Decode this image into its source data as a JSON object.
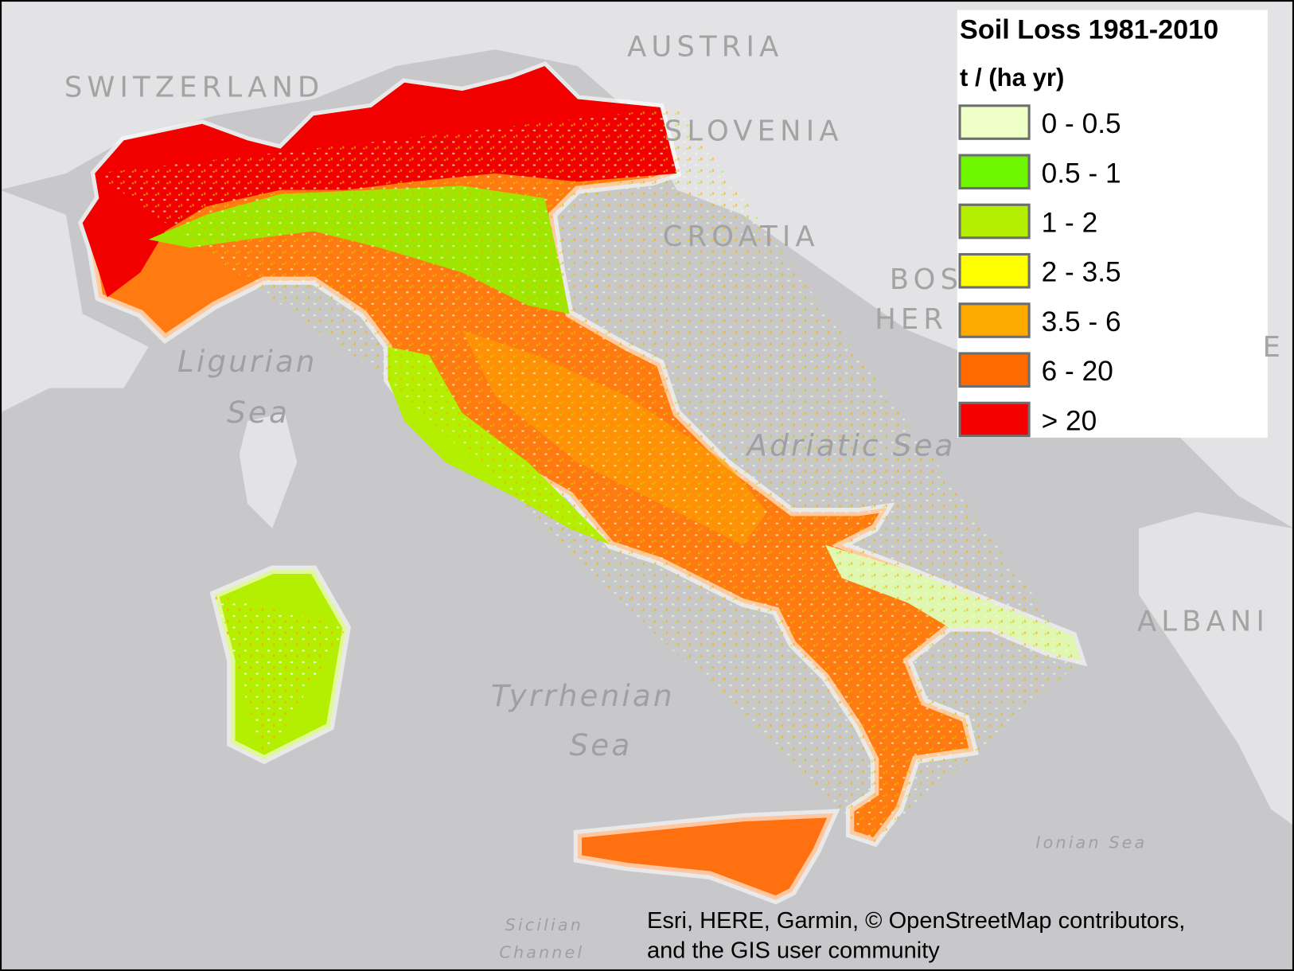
{
  "map": {
    "legend": {
      "title": "Soil Loss 1981-2010",
      "unit": "t / (ha yr)",
      "items": [
        {
          "label": "0 - 0.5",
          "color": "#eeffc8"
        },
        {
          "label": "0.5 - 1",
          "color": "#6ef500"
        },
        {
          "label": "1 - 2",
          "color": "#b4ee00"
        },
        {
          "label": "2 - 3.5",
          "color": "#ffff00"
        },
        {
          "label": "3.5 - 6",
          "color": "#ffaa00"
        },
        {
          "label": "6 - 20",
          "color": "#ff6a00"
        },
        {
          "label": "> 20",
          "color": "#f50000"
        }
      ]
    },
    "countries": [
      {
        "label": "AUSTRIA"
      },
      {
        "label": "SWITZERLAND"
      },
      {
        "label": "SLOVENIA"
      },
      {
        "label": "CROATIA"
      },
      {
        "label": "BOS"
      },
      {
        "label": "HER"
      },
      {
        "label": "ALBANI"
      },
      {
        "label": "E"
      }
    ],
    "seas": [
      {
        "label": "Ligurian"
      },
      {
        "label": "Sea"
      },
      {
        "label": "Adriatic Sea"
      },
      {
        "label": "Tyrrhenian"
      },
      {
        "label": "Sea"
      },
      {
        "label": "Ionian Sea"
      },
      {
        "label": "Sicilian"
      },
      {
        "label": "Channel"
      }
    ],
    "attribution": [
      "Esri, HERE, Garmin, © OpenStreetMap contributors,",
      "and the GIS user community"
    ]
  }
}
